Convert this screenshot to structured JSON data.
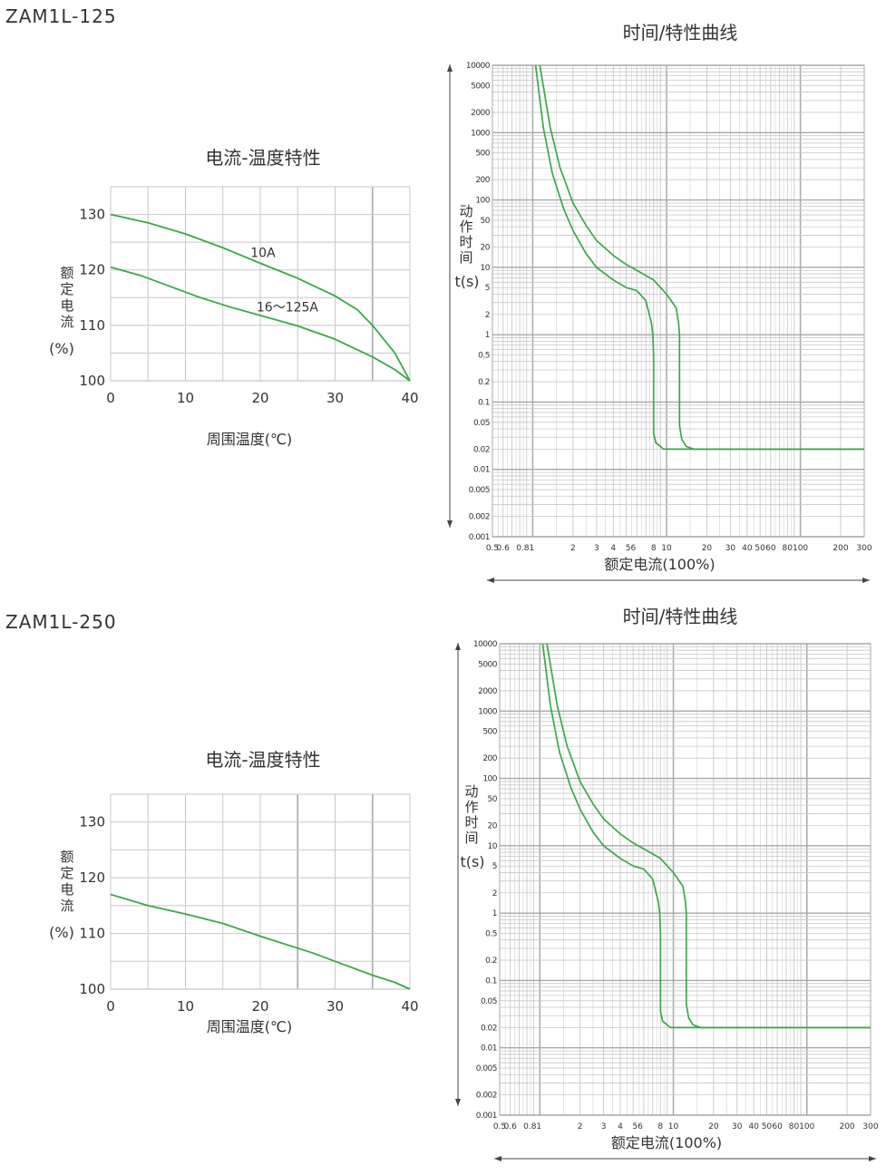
{
  "sections": [
    {
      "model": "ZAM1L-125",
      "temp_chart_title": "电流-温度特性",
      "time_chart_title": "时间/特性曲线"
    },
    {
      "model": "ZAM1L-250",
      "temp_chart_title": "电流-温度特性",
      "time_chart_title": "时间/特性曲线"
    }
  ],
  "colors": {
    "curve": "#3aa84a",
    "grid": "#c8c8c8",
    "grid_major": "#a8a8a8",
    "text": "#333333"
  },
  "chart_data": [
    {
      "type": "line",
      "title": "电流-温度特性",
      "xlabel": "周围温度(℃)",
      "ylabel_chars": [
        "额",
        "定",
        "电",
        "流"
      ],
      "ylabel_unit": "(%)",
      "xlim": [
        0,
        40
      ],
      "ylim": [
        100,
        135
      ],
      "xticks": [
        "0",
        "10",
        "20",
        "30",
        "40"
      ],
      "yticks": [
        "100",
        "110",
        "120",
        "130"
      ],
      "grid": true,
      "series": [
        {
          "name": "10A",
          "x": [
            0,
            5,
            10,
            15,
            20,
            25,
            30,
            33,
            35,
            38,
            40
          ],
          "y": [
            130,
            128.5,
            126.5,
            124,
            121.2,
            118.5,
            115.3,
            112.8,
            110,
            105,
            100
          ]
        },
        {
          "name": "16～125A",
          "x": [
            0,
            4,
            8,
            12,
            16,
            20,
            25,
            30,
            35,
            38,
            40
          ],
          "y": [
            120.5,
            119,
            117,
            115,
            113.3,
            111.8,
            109.9,
            107.5,
            104.3,
            102,
            100
          ]
        }
      ],
      "annotations": [
        "10A",
        "16～125A"
      ]
    },
    {
      "type": "line",
      "title": "时间/特性曲线",
      "xlabel": "额定电流(100%)",
      "ylabel_chars": [
        "动",
        "作",
        "时",
        "间"
      ],
      "ylabel_unit": "t(s)",
      "x_scale": "log",
      "y_scale": "log",
      "xlim": [
        0.5,
        300
      ],
      "ylim": [
        0.001,
        10000
      ],
      "xticks": [
        "0.5",
        "0.6",
        "0.81",
        "2",
        "3",
        "4",
        "56",
        "8",
        "10",
        "20",
        "30",
        "40",
        "50",
        "60",
        "80",
        "100",
        "200",
        "300"
      ],
      "yticks": [
        "10000",
        "5000",
        "2000",
        "1000",
        "500",
        "200",
        "100",
        "50",
        "20",
        "10",
        "5",
        "2",
        "1",
        "0.5",
        "0.2",
        "0.1",
        "0.05",
        "0.02",
        "0.01",
        "0.005",
        "0.002",
        "0.001"
      ],
      "grid": true,
      "series": [
        {
          "x": [
            1.05,
            1.2,
            1.4,
            1.7,
            2,
            2.5,
            3,
            4,
            5,
            6,
            7,
            7.7,
            7.9,
            8,
            8,
            8.3,
            9.5,
            12,
            300
          ],
          "y": [
            10000,
            1200,
            250,
            75,
            35,
            16,
            10,
            6.5,
            5,
            4.5,
            3.2,
            1.5,
            1,
            0.5,
            0.035,
            0.025,
            0.02,
            0.02,
            0.02
          ]
        },
        {
          "x": [
            1.13,
            1.35,
            1.6,
            2,
            2.5,
            3,
            4,
            5,
            6,
            8,
            10,
            11.8,
            12.3,
            12.5,
            12.5,
            13,
            14,
            16,
            300
          ],
          "y": [
            10000,
            1200,
            300,
            90,
            42,
            25,
            15,
            11,
            9,
            6.5,
            4,
            2.5,
            1.5,
            1,
            0.045,
            0.028,
            0.022,
            0.02,
            0.02
          ]
        }
      ]
    },
    {
      "type": "line",
      "title": "电流-温度特性",
      "xlabel": "周围温度(℃)",
      "ylabel_chars": [
        "额",
        "定",
        "电",
        "流"
      ],
      "ylabel_unit": "(%)",
      "xlim": [
        0,
        40
      ],
      "ylim": [
        100,
        135
      ],
      "xticks": [
        "0",
        "10",
        "20",
        "30",
        "40"
      ],
      "yticks": [
        "100",
        "110",
        "120",
        "130"
      ],
      "grid": true,
      "series": [
        {
          "x": [
            0,
            5,
            10,
            15,
            20,
            27,
            30,
            35,
            38,
            40
          ],
          "y": [
            117,
            115,
            113.5,
            111.8,
            109.5,
            106.5,
            105,
            102.5,
            101.2,
            100
          ]
        }
      ],
      "annotations": []
    },
    {
      "type": "line",
      "title": "时间/特性曲线",
      "xlabel": "额定电流(100%)",
      "ylabel_chars": [
        "动",
        "作",
        "时",
        "间"
      ],
      "ylabel_unit": "t(s)",
      "x_scale": "log",
      "y_scale": "log",
      "xlim": [
        0.5,
        300
      ],
      "ylim": [
        0.001,
        10000
      ],
      "xticks": [
        "0.5",
        "0.6",
        "0.81",
        "2",
        "3",
        "4",
        "56",
        "8",
        "10",
        "20",
        "30",
        "40",
        "50",
        "60",
        "80",
        "100",
        "200",
        "300"
      ],
      "yticks": [
        "10000",
        "5000",
        "2000",
        "1000",
        "500",
        "200",
        "100",
        "50",
        "20",
        "10",
        "5",
        "2",
        "1",
        "0.5",
        "0.2",
        "0.1",
        "0.05",
        "0.02",
        "0.01",
        "0.005",
        "0.002",
        "0.001"
      ],
      "grid": true,
      "series": [
        {
          "x": [
            1.05,
            1.2,
            1.4,
            1.7,
            2,
            2.5,
            3,
            4,
            5,
            6,
            7,
            7.7,
            7.9,
            8,
            8,
            8.3,
            9.5,
            12,
            300
          ],
          "y": [
            10000,
            1200,
            250,
            75,
            35,
            16,
            10,
            6.5,
            5,
            4.5,
            3.2,
            1.5,
            1,
            0.5,
            0.035,
            0.025,
            0.02,
            0.02,
            0.02
          ]
        },
        {
          "x": [
            1.13,
            1.35,
            1.6,
            2,
            2.5,
            3,
            4,
            5,
            6,
            8,
            10,
            11.8,
            12.3,
            12.5,
            12.5,
            13,
            14,
            16,
            300
          ],
          "y": [
            10000,
            1200,
            300,
            90,
            42,
            25,
            15,
            11,
            9,
            6.5,
            4,
            2.5,
            1.5,
            1,
            0.045,
            0.028,
            0.022,
            0.02,
            0.02
          ]
        }
      ]
    }
  ]
}
